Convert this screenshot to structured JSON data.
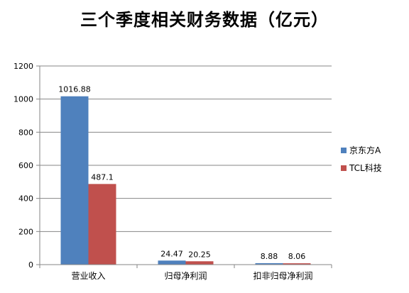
{
  "chart_data": {
    "type": "bar",
    "title": "三个季度相关财务数据（亿元）",
    "categories": [
      "营业收入",
      "归母净利润",
      "扣非归母净利润"
    ],
    "series": [
      {
        "name": "京东方A",
        "values": [
          1016.88,
          24.47,
          8.88
        ],
        "labels": [
          "1016.88",
          "24.47",
          "8.88"
        ],
        "color": "#4F81BD"
      },
      {
        "name": "TCL科技",
        "values": [
          487.1,
          20.25,
          8.06
        ],
        "labels": [
          "487.1",
          "20.25",
          "8.06"
        ],
        "color": "#C0504D"
      }
    ],
    "ylim": [
      0,
      1200
    ],
    "yticks": [
      0,
      200,
      400,
      600,
      800,
      1000,
      1200
    ],
    "grid": true,
    "legend": "right"
  }
}
